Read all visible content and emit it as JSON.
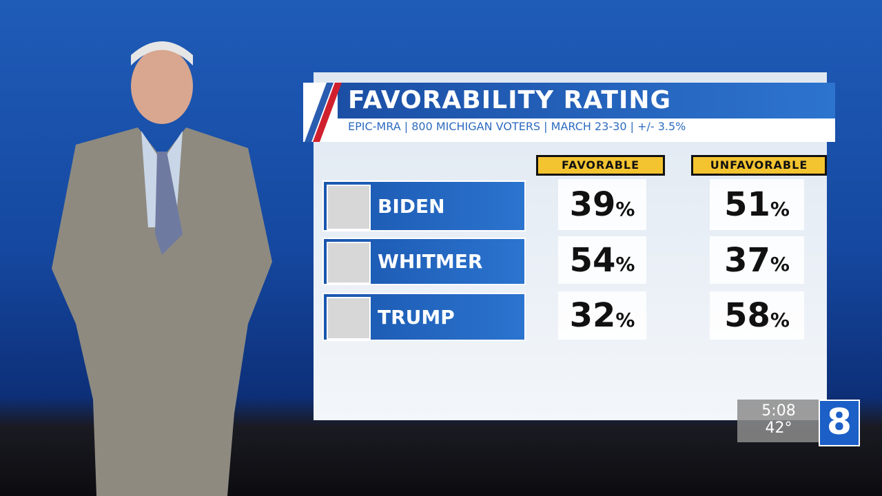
{
  "header": {
    "title": "FAVORABILITY RATING",
    "subtitle": "EPIC-MRA | 800 MICHIGAN VOTERS | MARCH 23-30 | +/- 3.5%"
  },
  "table": {
    "columns": [
      "FAVORABLE",
      "UNFAVORABLE"
    ],
    "unit": "%",
    "rows": [
      [
        "BIDEN",
        39,
        51
      ],
      [
        "WHITMER",
        54,
        37
      ],
      [
        "TRUMP",
        32,
        58
      ]
    ]
  },
  "bug": {
    "time": "5:08",
    "temperature": "42°",
    "channel": "8"
  }
}
